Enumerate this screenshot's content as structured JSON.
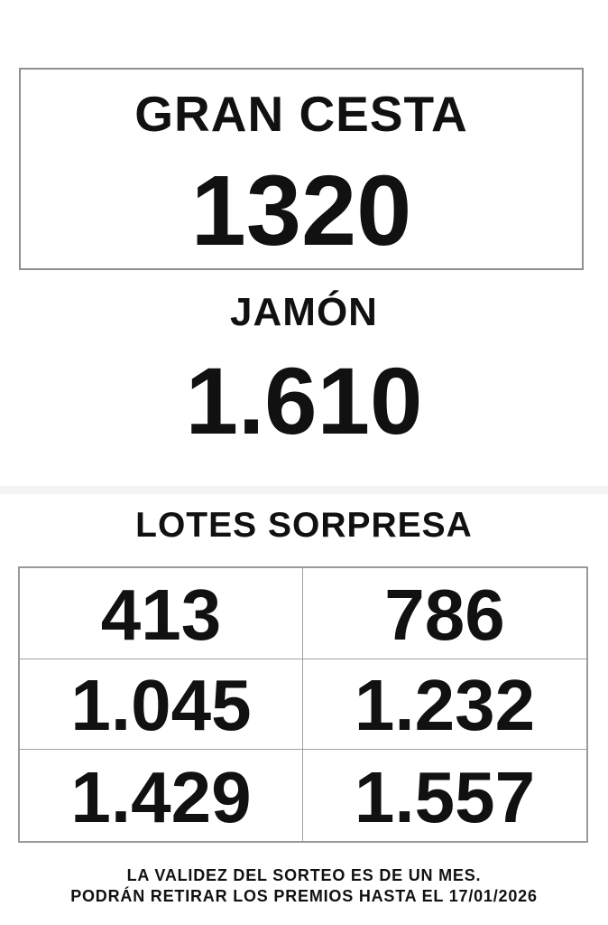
{
  "gran_cesta": {
    "title": "GRAN CESTA",
    "number": "1320"
  },
  "jamon": {
    "title": "JAMÓN",
    "number": "1.610"
  },
  "lotes_sorpresa": {
    "title": "LOTES SORPRESA",
    "numbers": [
      [
        "413",
        "786"
      ],
      [
        "1.045",
        "1.232"
      ],
      [
        "1.429",
        "1.557"
      ]
    ]
  },
  "footer": {
    "line1": "LA VALIDEZ DEL SORTEO ES DE UN MES.",
    "line2": "PODRÁN RETIRAR LOS PREMIOS HASTA EL 17/01/2026"
  },
  "colors": {
    "background": "#ffffff",
    "text": "#111111",
    "box_border": "#8f8f8f",
    "table_border": "#9a9a9a",
    "divider_band": "#f4f4f4"
  }
}
